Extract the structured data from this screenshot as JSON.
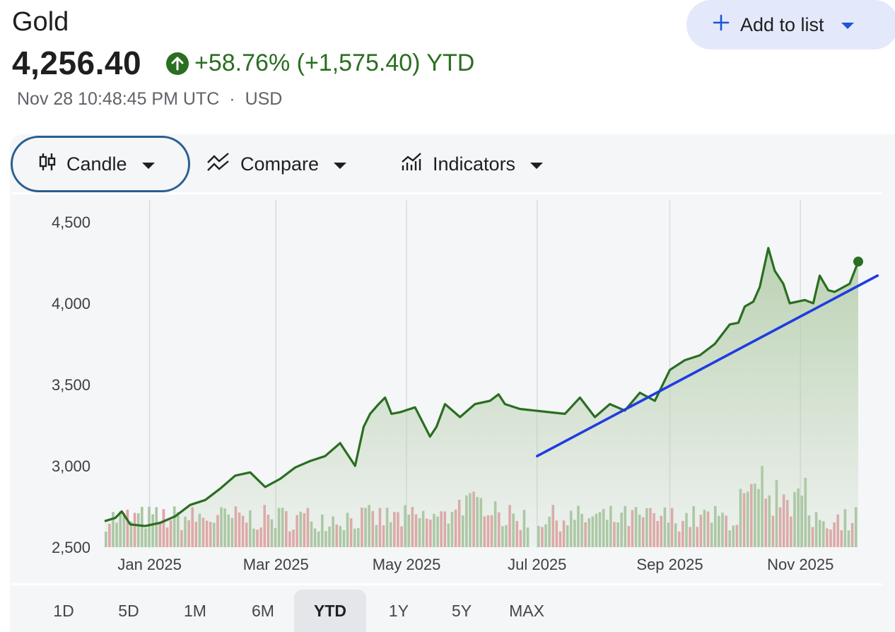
{
  "header": {
    "name": "Gold",
    "price": "4,256.40",
    "change": "+58.76% (+1,575.40) YTD",
    "timestamp": "Nov 28 10:48:45 PM UTC",
    "dot": "·",
    "currency": "USD",
    "add_to_list": "Add to list"
  },
  "toolbar": {
    "candle": "Candle",
    "compare": "Compare",
    "indicators": "Indicators"
  },
  "ranges": [
    "1D",
    "5D",
    "1M",
    "6M",
    "YTD",
    "1Y",
    "5Y",
    "MAX"
  ],
  "active_range": "YTD",
  "colors": {
    "line": "#2a6e21",
    "area": "#b9d0b0",
    "vol_up": "#a9c6a2",
    "vol_down": "#e3a2a6",
    "trendline": "#1f3ce0",
    "accent": "#e3e8fb"
  },
  "chart_data": {
    "type": "area",
    "ylim": [
      2500,
      4500
    ],
    "yticks": [
      "4,500",
      "4,000",
      "3,500",
      "3,000",
      "2,500"
    ],
    "ytick_values": [
      4500,
      4000,
      3500,
      3000,
      2500
    ],
    "xticks": [
      "Jan 2025",
      "Mar 2025",
      "May 2025",
      "Jul 2025",
      "Sep 2025",
      "Nov 2025"
    ],
    "xtick_dates": [
      "2025-01-01",
      "2025-03-01",
      "2025-05-01",
      "2025-07-01",
      "2025-09-01",
      "2025-11-01"
    ],
    "x": [
      "2024-12-11",
      "2024-12-16",
      "2024-12-19",
      "2024-12-23",
      "2024-12-30",
      "2025-01-06",
      "2025-01-13",
      "2025-01-20",
      "2025-01-27",
      "2025-02-03",
      "2025-02-10",
      "2025-02-17",
      "2025-02-24",
      "2025-03-03",
      "2025-03-10",
      "2025-03-17",
      "2025-03-24",
      "2025-03-31",
      "2025-04-07",
      "2025-04-11",
      "2025-04-14",
      "2025-04-18",
      "2025-04-21",
      "2025-04-24",
      "2025-04-28",
      "2025-05-05",
      "2025-05-12",
      "2025-05-15",
      "2025-05-19",
      "2025-05-26",
      "2025-06-02",
      "2025-06-09",
      "2025-06-13",
      "2025-06-16",
      "2025-06-23",
      "2025-06-30",
      "2025-07-07",
      "2025-07-14",
      "2025-07-21",
      "2025-07-28",
      "2025-08-04",
      "2025-08-11",
      "2025-08-18",
      "2025-08-25",
      "2025-09-01",
      "2025-09-08",
      "2025-09-15",
      "2025-09-22",
      "2025-09-29",
      "2025-10-03",
      "2025-10-06",
      "2025-10-10",
      "2025-10-13",
      "2025-10-17",
      "2025-10-20",
      "2025-10-24",
      "2025-10-27",
      "2025-11-03",
      "2025-11-07",
      "2025-11-10",
      "2025-11-14",
      "2025-11-17",
      "2025-11-24",
      "2025-11-28"
    ],
    "y": [
      2660,
      2680,
      2720,
      2640,
      2630,
      2650,
      2690,
      2760,
      2790,
      2860,
      2940,
      2960,
      2870,
      2920,
      2990,
      3030,
      3060,
      3140,
      3000,
      3240,
      3320,
      3380,
      3420,
      3320,
      3330,
      3360,
      3180,
      3240,
      3380,
      3300,
      3380,
      3400,
      3440,
      3380,
      3350,
      3340,
      3330,
      3320,
      3420,
      3300,
      3380,
      3340,
      3450,
      3400,
      3590,
      3650,
      3680,
      3750,
      3870,
      3880,
      3980,
      4010,
      4100,
      4340,
      4200,
      4120,
      4000,
      4020,
      4000,
      4170,
      4080,
      4070,
      4120,
      4256.4
    ],
    "trendline": {
      "x": [
        "2025-07-01",
        "2025-12-07"
      ],
      "y": [
        3060,
        4170
      ]
    },
    "volume_days": 209
  }
}
